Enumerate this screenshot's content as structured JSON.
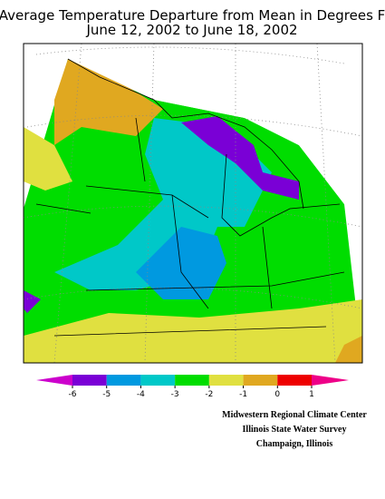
{
  "header": {
    "title": "Average Temperature Departure from Mean in Degrees F",
    "subtitle": "June 12, 2002 to June 18, 2002"
  },
  "legend": {
    "ticks": [
      -6,
      -5,
      -4,
      -3,
      -2,
      -1,
      0,
      1
    ],
    "low_color": "#cc00cc",
    "colors": [
      "#7a00d6",
      "#0099e0",
      "#00c8c8",
      "#00dd00",
      "#e0e040",
      "#e0a820",
      "#ee0000"
    ],
    "high_color": "#ee0088"
  },
  "credits": [
    "Midwestern Regional Climate Center",
    "Illinois State Water Survey",
    "Champaign, Illinois"
  ]
}
